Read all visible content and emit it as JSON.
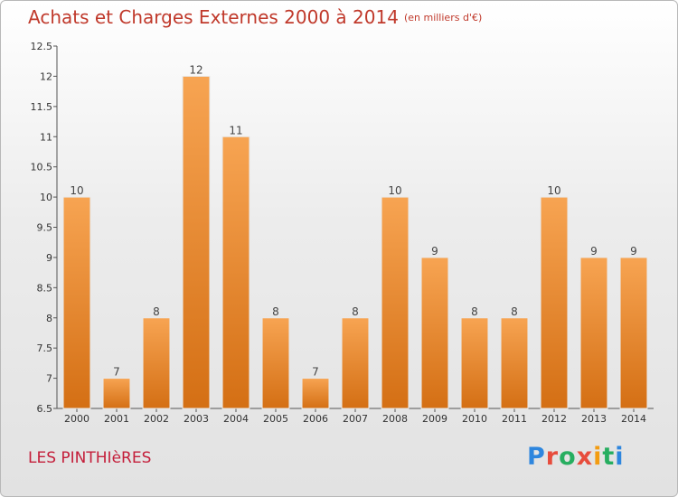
{
  "header": {
    "title": "Achats et Charges Externes 2000 à 2014",
    "unit": "(en milliers d'€)"
  },
  "footer": {
    "commune": "LES PINTHIèRES",
    "logo": "Proxiti"
  },
  "chart_data": {
    "type": "bar",
    "title": "Achats et Charges Externes 2000 à 2014",
    "subtitle": "(en milliers d'€)",
    "xlabel": "",
    "ylabel": "",
    "categories": [
      "2000",
      "2001",
      "2002",
      "2003",
      "2004",
      "2005",
      "2006",
      "2007",
      "2008",
      "2009",
      "2010",
      "2011",
      "2012",
      "2013",
      "2014"
    ],
    "values": [
      10,
      7,
      8,
      12,
      11,
      8,
      7,
      8,
      10,
      9,
      8,
      8,
      10,
      9,
      9
    ],
    "ylim": [
      6.5,
      12.5
    ],
    "yticks": [
      "6.5",
      "7",
      "7.5",
      "8",
      "8.5",
      "9",
      "9.5",
      "10",
      "10.5",
      "11",
      "11.5",
      "12",
      "12.5"
    ],
    "grid": false,
    "legend": "none",
    "colors": {
      "bar_top": "#f7a452",
      "bar_bottom": "#d46f14",
      "title": "#c0392b",
      "commune": "#c41e3a"
    }
  }
}
